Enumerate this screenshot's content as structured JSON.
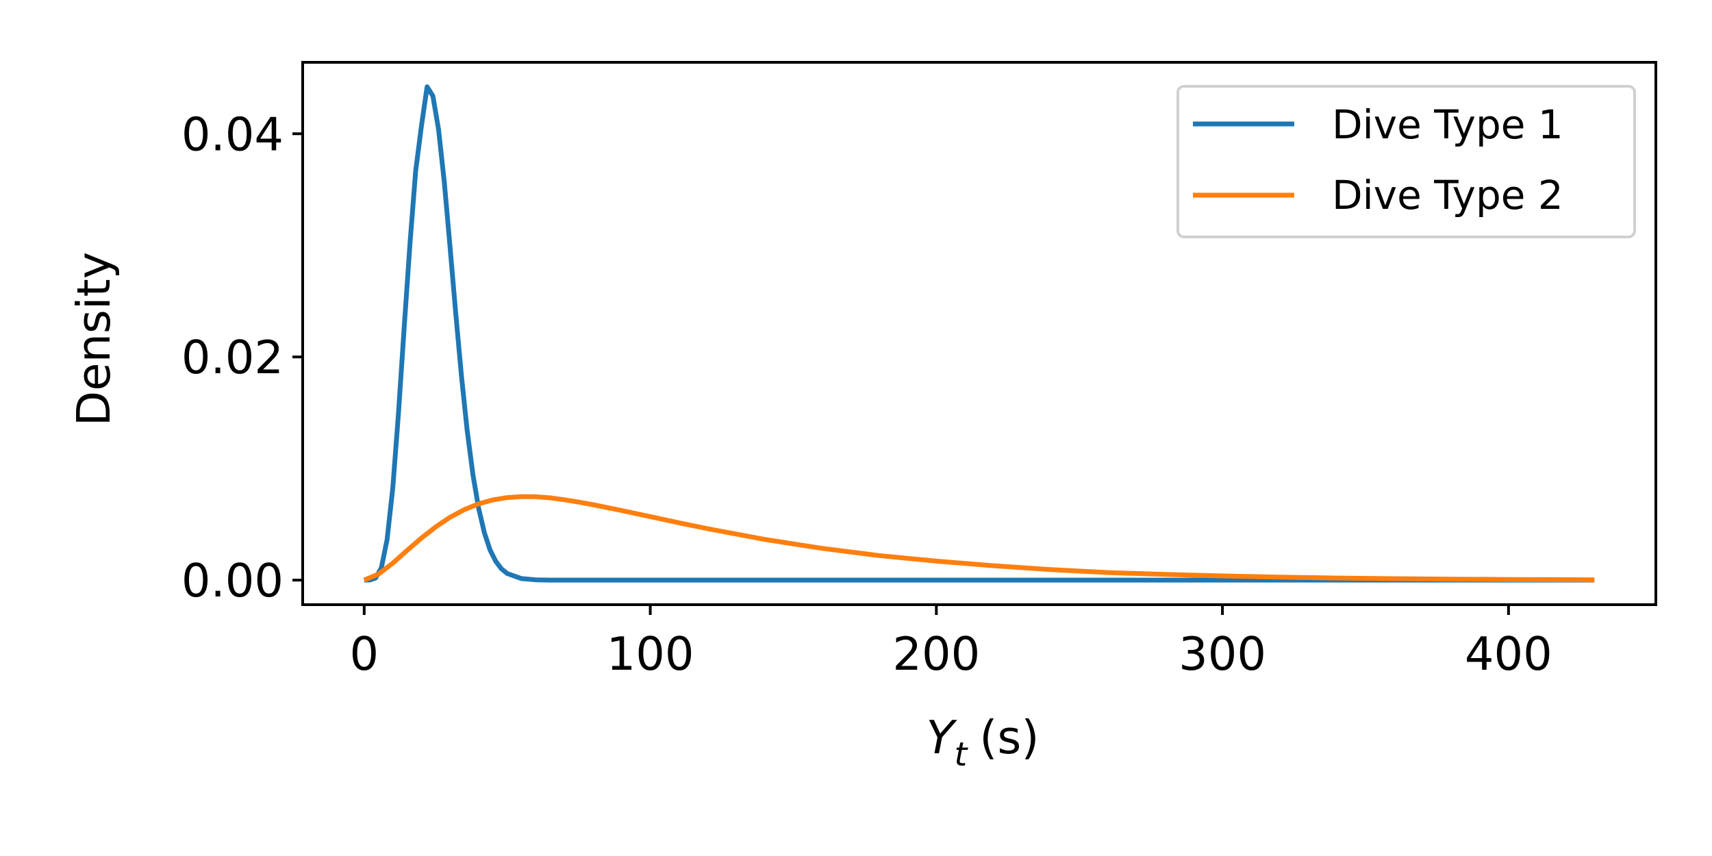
{
  "chart_data": {
    "type": "line",
    "title": "",
    "xlabel_var": "Y",
    "xlabel_sub": "t",
    "xlabel_unit": "(s)",
    "ylabel": "Density",
    "xlim": [
      -21.5,
      451.5
    ],
    "ylim": [
      -0.0022,
      0.0464
    ],
    "xticks": [
      0,
      100,
      200,
      300,
      400
    ],
    "xtick_labels": [
      "0",
      "100",
      "200",
      "300",
      "400"
    ],
    "yticks": [
      0.0,
      0.02,
      0.04
    ],
    "ytick_labels": [
      "0.00",
      "0.02",
      "0.04"
    ],
    "grid": false,
    "legend_position": "top-right",
    "series": [
      {
        "name": "Dive Type 1",
        "color": "#1f77b4",
        "x": [
          0,
          2,
          4,
          6,
          8,
          10,
          12,
          14,
          16,
          18,
          20,
          22,
          24,
          26,
          28,
          30,
          32,
          34,
          36,
          38,
          40,
          42,
          44,
          46,
          48,
          50,
          55,
          60,
          65,
          70,
          80,
          90,
          100,
          150,
          200,
          300,
          430
        ],
        "y": [
          0.0,
          1e-05,
          0.00019,
          0.00111,
          0.00361,
          0.00827,
          0.01497,
          0.02272,
          0.03017,
          0.03668,
          0.04068,
          0.04421,
          0.04339,
          0.04039,
          0.03566,
          0.02991,
          0.02391,
          0.01827,
          0.01341,
          0.00946,
          0.00645,
          0.00425,
          0.00271,
          0.00168,
          0.00101,
          0.00059,
          0.00014,
          3e-05,
          0.0,
          0.0,
          0.0,
          0.0,
          0.0,
          0.0,
          0.0,
          0.0,
          0.0
        ]
      },
      {
        "name": "Dive Type 2",
        "color": "#ff7f0e",
        "x": [
          0,
          5,
          10,
          15,
          20,
          25,
          30,
          35,
          40,
          45,
          50,
          55,
          60,
          65,
          70,
          75,
          80,
          90,
          100,
          110,
          120,
          140,
          160,
          180,
          200,
          220,
          240,
          260,
          280,
          300,
          320,
          340,
          360,
          380,
          400,
          430
        ],
        "y": [
          0.0,
          0.00054,
          0.00152,
          0.00266,
          0.00377,
          0.00477,
          0.00563,
          0.00632,
          0.00684,
          0.00719,
          0.0074,
          0.00748,
          0.00747,
          0.00737,
          0.0072,
          0.00699,
          0.00676,
          0.00624,
          0.00569,
          0.00514,
          0.00461,
          0.00365,
          0.00285,
          0.0022,
          0.0017,
          0.00129,
          0.00094,
          0.00068,
          0.00051,
          0.00038,
          0.00027,
          0.00019,
          0.00013,
          9e-05,
          6e-05,
          3e-05
        ]
      }
    ]
  }
}
